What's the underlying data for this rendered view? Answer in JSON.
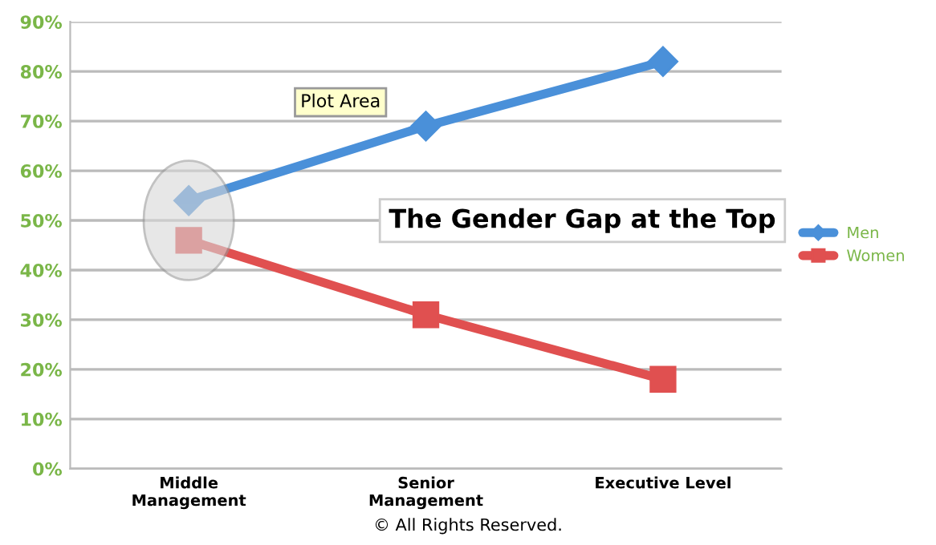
{
  "chart_data": {
    "type": "line",
    "title": "The Gender Gap at the Top",
    "categories": [
      "Middle\nManagement",
      "Senior\nManagement",
      "Executive Level"
    ],
    "series": [
      {
        "name": "Men",
        "color": "#4a90d9",
        "values": [
          54,
          69,
          82
        ],
        "marker": "diamond"
      },
      {
        "name": "Women",
        "color": "#e05050",
        "values": [
          46,
          31,
          18
        ],
        "marker": "square"
      }
    ],
    "ylim": [
      0,
      90
    ],
    "yticks": [
      {
        "value": 0,
        "label": "0%"
      },
      {
        "value": 10,
        "label": "10%"
      },
      {
        "value": 20,
        "label": "20%"
      },
      {
        "value": 30,
        "label": "30%"
      },
      {
        "value": 40,
        "label": "40%"
      },
      {
        "value": 50,
        "label": "50%"
      },
      {
        "value": 60,
        "label": "60%"
      },
      {
        "value": 70,
        "label": "70%"
      },
      {
        "value": 80,
        "label": "80%"
      },
      {
        "value": 90,
        "label": "90%"
      }
    ],
    "grid": "y",
    "legend": "right",
    "line_style": "solid",
    "annotations": [
      "Plot Area",
      "© All Rights Reserved."
    ]
  }
}
